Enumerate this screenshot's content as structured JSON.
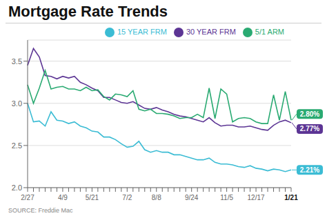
{
  "chart_data": {
    "type": "line",
    "title": "Mortgage Rate Trends",
    "source": "SOURCE: Freddie Mac",
    "categories": [
      "2/27",
      null,
      null,
      null,
      null,
      null,
      "4/9",
      null,
      null,
      null,
      null,
      "5/21",
      null,
      null,
      null,
      null,
      null,
      "7/2",
      null,
      null,
      null,
      null,
      "8/8",
      null,
      null,
      null,
      null,
      null,
      "9/24",
      null,
      null,
      null,
      null,
      null,
      "11/5",
      null,
      null,
      null,
      null,
      "12/17",
      null,
      null,
      null,
      null,
      null,
      "1/21"
    ],
    "series": [
      {
        "name": "30 YEAR FRM",
        "color": "#5c3594",
        "values": [
          3.45,
          3.65,
          3.55,
          3.33,
          3.32,
          3.29,
          3.32,
          3.3,
          3.32,
          3.25,
          3.22,
          3.18,
          3.15,
          3.07,
          3.07,
          3.04,
          3.01,
          3.0,
          3.02,
          2.98,
          2.94,
          2.93,
          2.95,
          2.92,
          2.9,
          2.87,
          2.85,
          2.84,
          2.82,
          2.8,
          2.78,
          2.83,
          2.77,
          2.73,
          2.74,
          2.74,
          2.72,
          2.72,
          2.73,
          2.71,
          2.69,
          2.68,
          2.74,
          2.78,
          2.8,
          2.77
        ]
      },
      {
        "name": "15 YEAR FRM",
        "color": "#3bbcd4",
        "values": [
          3.0,
          2.78,
          2.79,
          2.73,
          2.9,
          2.8,
          2.79,
          2.76,
          2.78,
          2.73,
          2.71,
          2.67,
          2.66,
          2.6,
          2.6,
          2.57,
          2.52,
          2.48,
          2.49,
          2.55,
          2.45,
          2.42,
          2.44,
          2.42,
          2.42,
          2.39,
          2.39,
          2.37,
          2.35,
          2.33,
          2.33,
          2.35,
          2.3,
          2.28,
          2.28,
          2.27,
          2.25,
          2.24,
          2.26,
          2.23,
          2.22,
          2.2,
          2.22,
          2.21,
          2.19,
          2.21
        ]
      },
      {
        "name": "5/1 ARM",
        "color": "#2aaa72",
        "values": [
          3.22,
          3.0,
          3.18,
          3.39,
          3.17,
          3.19,
          3.2,
          3.17,
          3.17,
          3.15,
          3.19,
          3.15,
          3.16,
          3.08,
          3.04,
          3.11,
          3.1,
          3.08,
          3.15,
          2.93,
          2.91,
          2.93,
          2.88,
          2.88,
          2.87,
          2.85,
          2.82,
          2.83,
          2.83,
          2.87,
          2.83,
          3.18,
          2.82,
          3.17,
          3.11,
          2.78,
          2.82,
          2.83,
          2.82,
          2.78,
          2.76,
          2.76,
          3.1,
          2.8,
          3.14,
          2.8
        ]
      }
    ],
    "annotations": [
      {
        "text": "2.77%",
        "series": "30 YEAR FRM"
      },
      {
        "text": "2.21%",
        "series": "15 YEAR FRM"
      },
      {
        "text": "2.80%",
        "series": "5/1 ARM"
      }
    ],
    "ylim": [
      2.0,
      3.75
    ],
    "yticks": [
      {
        "value": 2.0,
        "label": "2.0"
      },
      2.5,
      {
        "value": 3.0,
        "label": "3.0"
      },
      3.5
    ],
    "grid": true,
    "legend": "upper right"
  }
}
